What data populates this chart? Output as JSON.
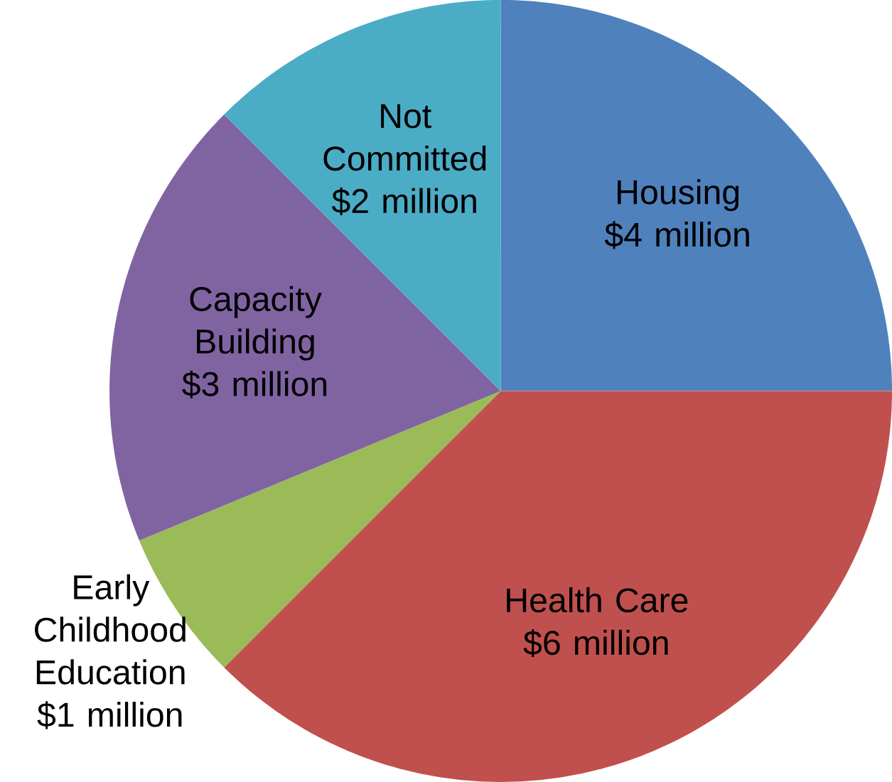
{
  "chart_data": {
    "type": "pie",
    "categories": [
      "Housing",
      "Health Care",
      "Early Childhood Education",
      "Capacity Building",
      "Not Committed"
    ],
    "values": [
      4,
      6,
      1,
      3,
      2
    ],
    "colors": [
      "#4f81bd",
      "#c0504d",
      "#9bbb59",
      "#8064a2",
      "#4bacc6"
    ],
    "value_labels": [
      "$4 million",
      "$6 million",
      "$1 million",
      "$3 million",
      "$2 million"
    ]
  }
}
